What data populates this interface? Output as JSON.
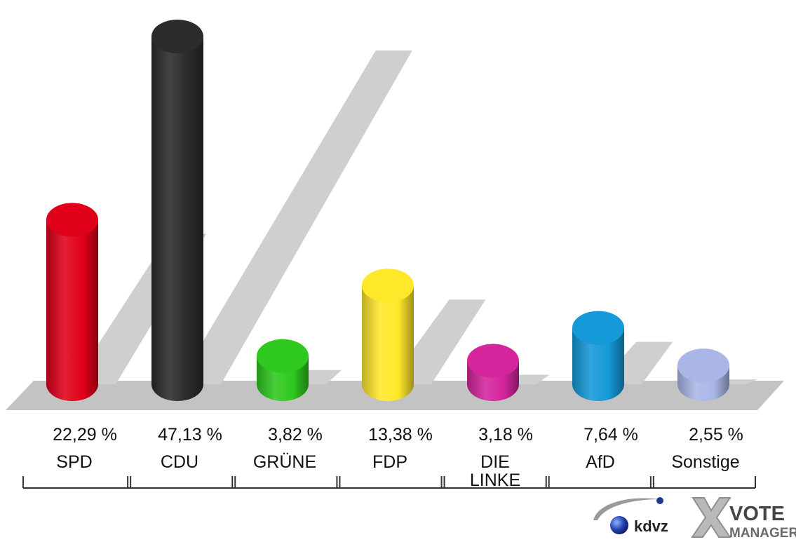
{
  "chart_data": {
    "type": "bar",
    "title": "",
    "xlabel": "",
    "ylabel": "",
    "ylim": [
      0,
      50
    ],
    "grid": false,
    "legend": "none",
    "categories": [
      {
        "name": "SPD",
        "lines": [
          "SPD"
        ]
      },
      {
        "name": "CDU",
        "lines": [
          "CDU"
        ]
      },
      {
        "name": "GRÜNE",
        "lines": [
          "GRÜNE"
        ]
      },
      {
        "name": "FDP",
        "lines": [
          "FDP"
        ]
      },
      {
        "name": "DIE LINKE",
        "lines": [
          "DIE",
          "LINKE"
        ]
      },
      {
        "name": "AfD",
        "lines": [
          "AfD"
        ]
      },
      {
        "name": "Sonstige",
        "lines": [
          "Sonstige"
        ]
      }
    ],
    "values": [
      22.29,
      47.13,
      3.82,
      13.38,
      3.18,
      7.64,
      2.55
    ],
    "value_labels": [
      "22,29 %",
      "47,13 %",
      "3,82 %",
      "13,38 %",
      "3,18 %",
      "7,64 %",
      "2,55 %"
    ],
    "colors": [
      "#e0001a",
      "#2b2b2b",
      "#2fc81e",
      "#ffe82a",
      "#d4259c",
      "#1599d8",
      "#aab6e6"
    ]
  },
  "branding": {
    "kdvz_logo": "kdvz",
    "vote_logo_line1": "VOTE",
    "vote_logo_line2": "MANAGER"
  }
}
